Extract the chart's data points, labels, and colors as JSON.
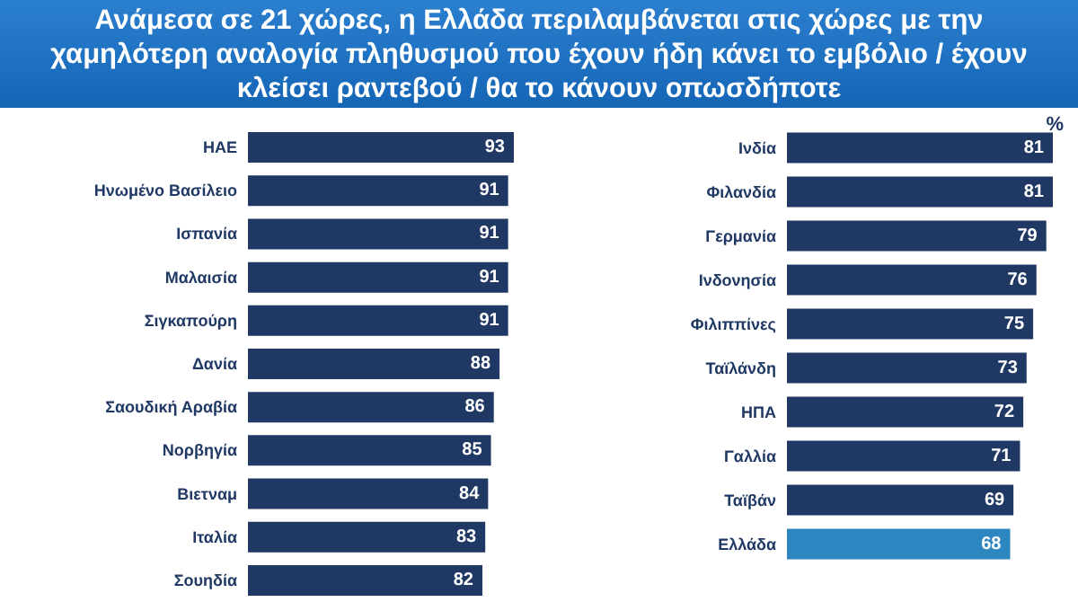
{
  "chart_data": [
    {
      "type": "bar",
      "title": "Ανάμεσα σε  21 χώρες, η Ελλάδα περιλαμβάνεται στις χώρες με την χαμηλότερη αναλογία πληθυσμού που έχουν ήδη κάνει το εμβόλιο / έχουν κλείσει ραντεβού / θα το κάνουν οπωσδήποτε",
      "orientation": "horizontal",
      "data_labels": true,
      "categories": [
        "ΗΑΕ",
        "Ηνωμένο Βασίλειο",
        "Ισπανία",
        "Μαλαισία",
        "Σιγκαπούρη",
        "Δανία",
        "Σαουδική Αραβία",
        "Νορβηγία",
        "Βιετναμ",
        "Ιταλία",
        "Σουηδία"
      ],
      "values": [
        93,
        91,
        91,
        91,
        91,
        88,
        86,
        85,
        84,
        83,
        82
      ],
      "colors": [
        "#1f3864",
        "#1f3864",
        "#1f3864",
        "#1f3864",
        "#1f3864",
        "#1f3864",
        "#1f3864",
        "#1f3864",
        "#1f3864",
        "#1f3864",
        "#1f3864"
      ]
    },
    {
      "type": "bar",
      "orientation": "horizontal",
      "data_labels": true,
      "annotations": [
        "%"
      ],
      "categories": [
        "Ινδία",
        "Φιλανδία",
        "Γερμανία",
        "Ινδονησία",
        "Φιλιππίνες",
        "Ταϊλάνδη",
        "ΗΠΑ",
        "Γαλλία",
        "Ταϊβάν",
        "Ελλάδα"
      ],
      "values": [
        81,
        81,
        79,
        76,
        75,
        73,
        72,
        71,
        69,
        68
      ],
      "colors": [
        "#1f3864",
        "#1f3864",
        "#1f3864",
        "#1f3864",
        "#1f3864",
        "#1f3864",
        "#1f3864",
        "#1f3864",
        "#1f3864",
        "#2e86c1"
      ]
    }
  ]
}
